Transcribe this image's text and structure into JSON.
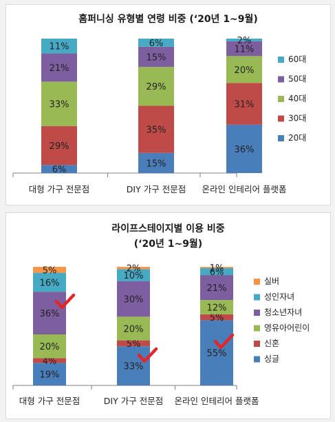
{
  "chart_data": [
    {
      "type": "bar",
      "stacked": true,
      "title": "홈퍼니싱 유형별 연령 비중 (‘20년 1~9월)",
      "categories": [
        "대형 가구 전문점",
        "DIY 가구 전문점",
        "온라인 인테리어 플랫폼"
      ],
      "series": [
        {
          "name": "20대",
          "color": "#4a7ebb",
          "values": [
            6,
            15,
            36
          ]
        },
        {
          "name": "30대",
          "color": "#be4b48",
          "values": [
            29,
            35,
            31
          ]
        },
        {
          "name": "40대",
          "color": "#98b954",
          "values": [
            33,
            29,
            20
          ]
        },
        {
          "name": "50대",
          "color": "#7d5fa0",
          "values": [
            21,
            15,
            11
          ]
        },
        {
          "name": "60대",
          "color": "#46aac5",
          "values": [
            11,
            6,
            2
          ]
        }
      ],
      "legend": "right",
      "grid": false
    },
    {
      "type": "bar",
      "stacked": true,
      "title": [
        "라이프스테이지별 이용 비중",
        "(‘20년 1~9월)"
      ],
      "categories": [
        "대형 가구 전문점",
        "DIY 가구 전문점",
        "온라인 인테리어 플랫폼"
      ],
      "series": [
        {
          "name": "싱글",
          "color": "#4a7ebb",
          "values": [
            19,
            33,
            55
          ]
        },
        {
          "name": "신혼",
          "color": "#be4b48",
          "values": [
            4,
            5,
            5
          ]
        },
        {
          "name": "영유아어린이",
          "color": "#98b954",
          "values": [
            20,
            20,
            12
          ]
        },
        {
          "name": "청소년자녀",
          "color": "#7d5fa0",
          "values": [
            36,
            30,
            21
          ]
        },
        {
          "name": "성인자녀",
          "color": "#46aac5",
          "values": [
            16,
            10,
            6
          ]
        },
        {
          "name": "실버",
          "color": "#f79646",
          "values": [
            5,
            2,
            1
          ]
        }
      ],
      "legend": "right",
      "grid": false
    }
  ]
}
